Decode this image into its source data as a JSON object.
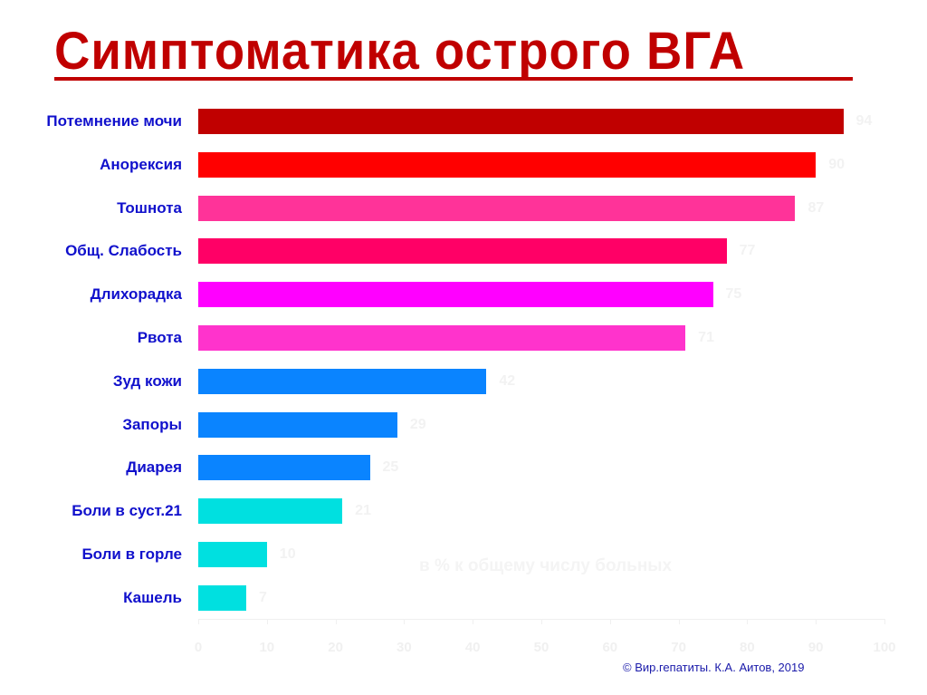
{
  "title": "Симптоматика острого ВГА",
  "footer": "© Вир.гепатиты. К.А. Аитов, 2019",
  "chart_data": {
    "type": "bar",
    "orientation": "horizontal",
    "title": "Симптоматика острого ВГА",
    "xlabel": "в % к общему числу больных",
    "ylabel": "",
    "xlim": [
      0,
      100
    ],
    "x_ticks": [
      0,
      10,
      20,
      30,
      40,
      50,
      60,
      70,
      80,
      90,
      100
    ],
    "grid": false,
    "legend": null,
    "categories": [
      "Потемнение мочи",
      "Анорексия",
      "Тошнота",
      "Общ. Слабость",
      "Длихорадка",
      "Рвота",
      "Зуд кожи",
      "Запоры",
      "Диарея",
      "Боли в суст.21",
      "Боли в горле",
      "Кашель"
    ],
    "values": [
      94,
      90,
      87,
      77,
      75,
      71,
      42,
      29,
      25,
      21,
      10,
      7
    ],
    "colors": [
      "#c00000",
      "#ff0000",
      "#ff3399",
      "#ff0066",
      "#ff00ff",
      "#ff33cc",
      "#0a84ff",
      "#0a84ff",
      "#0a84ff",
      "#00e0e0",
      "#00e0e0",
      "#00e0e0"
    ]
  }
}
